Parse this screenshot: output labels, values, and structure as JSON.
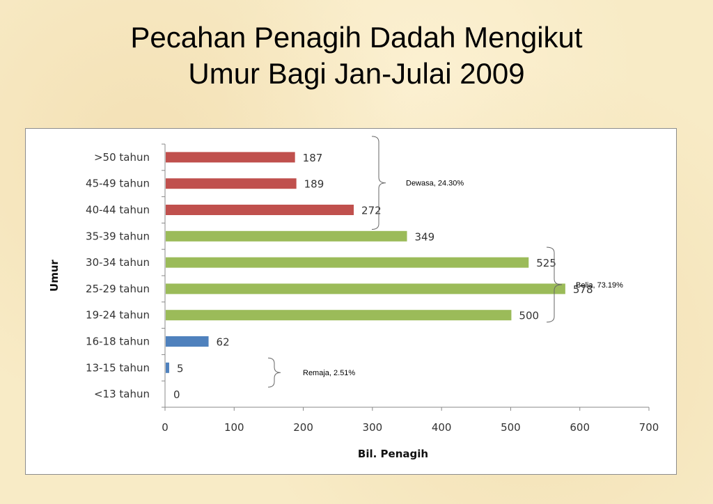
{
  "title_line1": "Pecahan Penagih Dadah Mengikut",
  "title_line2": "Umur Bagi Jan-Julai 2009",
  "chart_data": {
    "type": "bar",
    "orientation": "horizontal",
    "categories": [
      ">50 tahun",
      "45-49 tahun",
      "40-44 tahun",
      "35-39 tahun",
      "30-34 tahun",
      "25-29 tahun",
      "19-24 tahun",
      "16-18 tahun",
      "13-15 tahun",
      "<13 tahun"
    ],
    "values": [
      187,
      189,
      272,
      349,
      525,
      578,
      500,
      62,
      5,
      0
    ],
    "bar_colors": [
      "#c0504d",
      "#c0504d",
      "#c0504d",
      "#9bbb59",
      "#9bbb59",
      "#9bbb59",
      "#9bbb59",
      "#4f81bd",
      "#4f81bd",
      "#4f81bd"
    ],
    "xlabel": "Bil. Penagih",
    "ylabel": "Umur",
    "xlim": [
      0,
      700
    ],
    "xticks": [
      0,
      100,
      200,
      300,
      400,
      500,
      600,
      700
    ],
    "grid": false,
    "legend": "none",
    "data_labels": true,
    "annotations": [
      {
        "text": "Dewasa, 24.30%",
        "group_start": 0,
        "group_end": 2
      },
      {
        "text": "Belia, 73.19%",
        "group_start": 4,
        "group_end": 6
      },
      {
        "text": "Remaja, 2.51%",
        "group_start": 8,
        "group_end": 9
      }
    ]
  }
}
